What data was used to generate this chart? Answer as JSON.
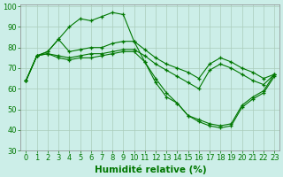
{
  "xlabel": "Humidité relative (%)",
  "bg_color": "#cceee8",
  "grid_color": "#aaccbb",
  "line_color": "#007700",
  "marker": "+",
  "series": [
    {
      "x": [
        0,
        1,
        2,
        3,
        4,
        5,
        6,
        7,
        8,
        9,
        10,
        11,
        12,
        13,
        14,
        15,
        16,
        17,
        18,
        19,
        20,
        21,
        22,
        23
      ],
      "y": [
        64,
        76,
        78,
        84,
        90,
        94,
        93,
        95,
        97,
        96,
        83,
        73,
        65,
        58,
        53,
        47,
        45,
        43,
        42,
        43,
        52,
        56,
        59,
        67
      ]
    },
    {
      "x": [
        0,
        1,
        2,
        3,
        4,
        5,
        6,
        7,
        8,
        9,
        10,
        11,
        12,
        13,
        14,
        15,
        16,
        17,
        18,
        19,
        20,
        21,
        22,
        23
      ],
      "y": [
        64,
        76,
        78,
        84,
        78,
        79,
        80,
        80,
        82,
        83,
        83,
        79,
        75,
        72,
        70,
        68,
        65,
        72,
        75,
        73,
        70,
        68,
        65,
        67
      ]
    },
    {
      "x": [
        0,
        1,
        2,
        3,
        4,
        5,
        6,
        7,
        8,
        9,
        10,
        11,
        12,
        13,
        14,
        15,
        16,
        17,
        18,
        19,
        20,
        21,
        22,
        23
      ],
      "y": [
        64,
        76,
        77,
        76,
        75,
        76,
        77,
        77,
        78,
        79,
        79,
        76,
        72,
        69,
        66,
        63,
        60,
        69,
        72,
        70,
        67,
        64,
        62,
        67
      ]
    },
    {
      "x": [
        0,
        1,
        2,
        3,
        4,
        5,
        6,
        7,
        8,
        9,
        10,
        11,
        12,
        13,
        14,
        15,
        16,
        17,
        18,
        19,
        20,
        21,
        22,
        23
      ],
      "y": [
        64,
        76,
        77,
        75,
        74,
        75,
        75,
        76,
        77,
        78,
        78,
        73,
        63,
        56,
        53,
        47,
        44,
        42,
        41,
        42,
        51,
        55,
        58,
        66
      ]
    }
  ],
  "xlim": [
    -0.5,
    23.5
  ],
  "ylim": [
    30,
    101
  ],
  "yticks": [
    30,
    40,
    50,
    60,
    70,
    80,
    90,
    100
  ],
  "xticks": [
    0,
    1,
    2,
    3,
    4,
    5,
    6,
    7,
    8,
    9,
    10,
    11,
    12,
    13,
    14,
    15,
    16,
    17,
    18,
    19,
    20,
    21,
    22,
    23
  ],
  "tick_fontsize": 6,
  "xlabel_fontsize": 7.5
}
